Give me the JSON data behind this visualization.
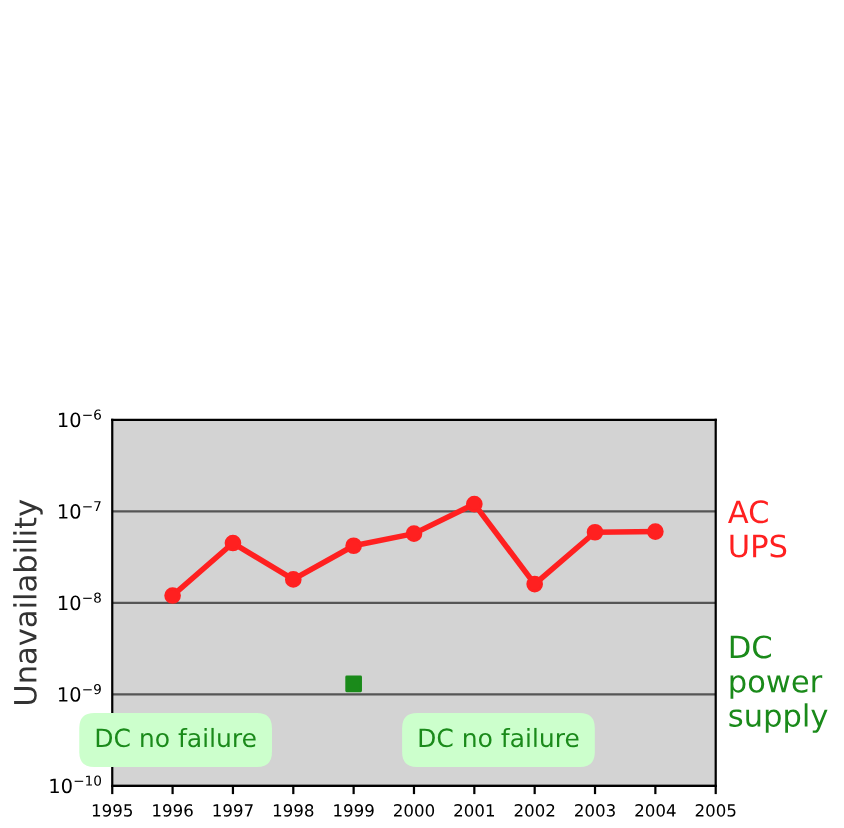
{
  "chart_data": {
    "type": "line",
    "ylabel": "Unavailability",
    "log": "y",
    "grid": "y",
    "legend": false,
    "xlim": [
      1995,
      2005
    ],
    "xticks": [
      1995,
      1996,
      1997,
      1998,
      1999,
      2000,
      2001,
      2002,
      2003,
      2004,
      2005
    ],
    "ylim": [
      1e-10,
      1e-06
    ],
    "yticks": [
      {
        "value": 1e-10,
        "label": "10$^{−10}$"
      },
      {
        "value": 1e-09,
        "label": "10$^{−9}$"
      },
      {
        "value": 1e-08,
        "label": "10$^{−8}$"
      },
      {
        "value": 1e-07,
        "label": "10$^{−7}$"
      },
      {
        "value": 1e-06,
        "label": "10$^{−6}$"
      }
    ],
    "series": [
      {
        "name": "AC\nUPS",
        "color": "#ff2020",
        "marker": "circle",
        "x": [
          1996,
          1997,
          1998,
          1999,
          2000,
          2001,
          2002,
          2003,
          2004
        ],
        "values": [
          1.2e-08,
          4.5e-08,
          1.8e-08,
          4.2e-08,
          5.7e-08,
          1.2e-07,
          1.6e-08,
          5.9e-08,
          6e-08
        ]
      },
      {
        "name": "DC\npower\nsupply",
        "color": "#1a8a1a",
        "type": "scatter",
        "marker": "square",
        "x": [
          1999
        ],
        "values": [
          1.3e-09
        ]
      }
    ],
    "annotations": [
      "DC no failure",
      "DC no failure"
    ]
  }
}
